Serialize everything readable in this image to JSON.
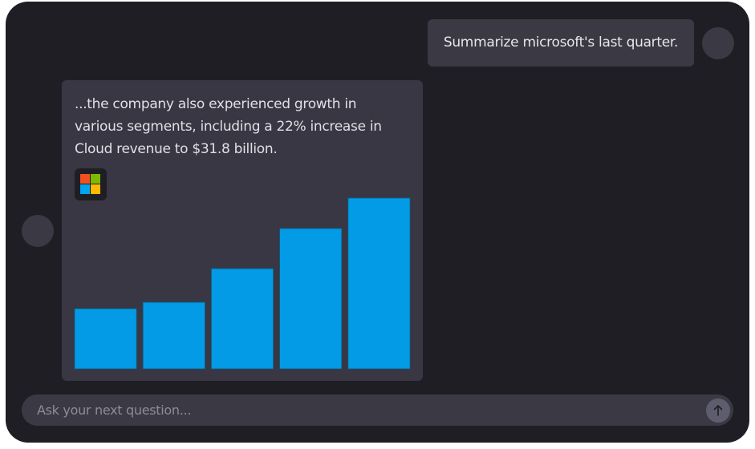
{
  "user_message": {
    "text": "Summarize microsoft's last quarter."
  },
  "assistant_message": {
    "text": "...the company also experienced growth in various segments, including a 22% increase in Cloud revenue to $31.8 billion."
  },
  "chart_data": {
    "type": "bar",
    "values": [
      75,
      83,
      125,
      175,
      213
    ],
    "ylim": [
      0,
      214
    ],
    "color": "#039be5"
  },
  "input": {
    "placeholder": "Ask your next question..."
  }
}
